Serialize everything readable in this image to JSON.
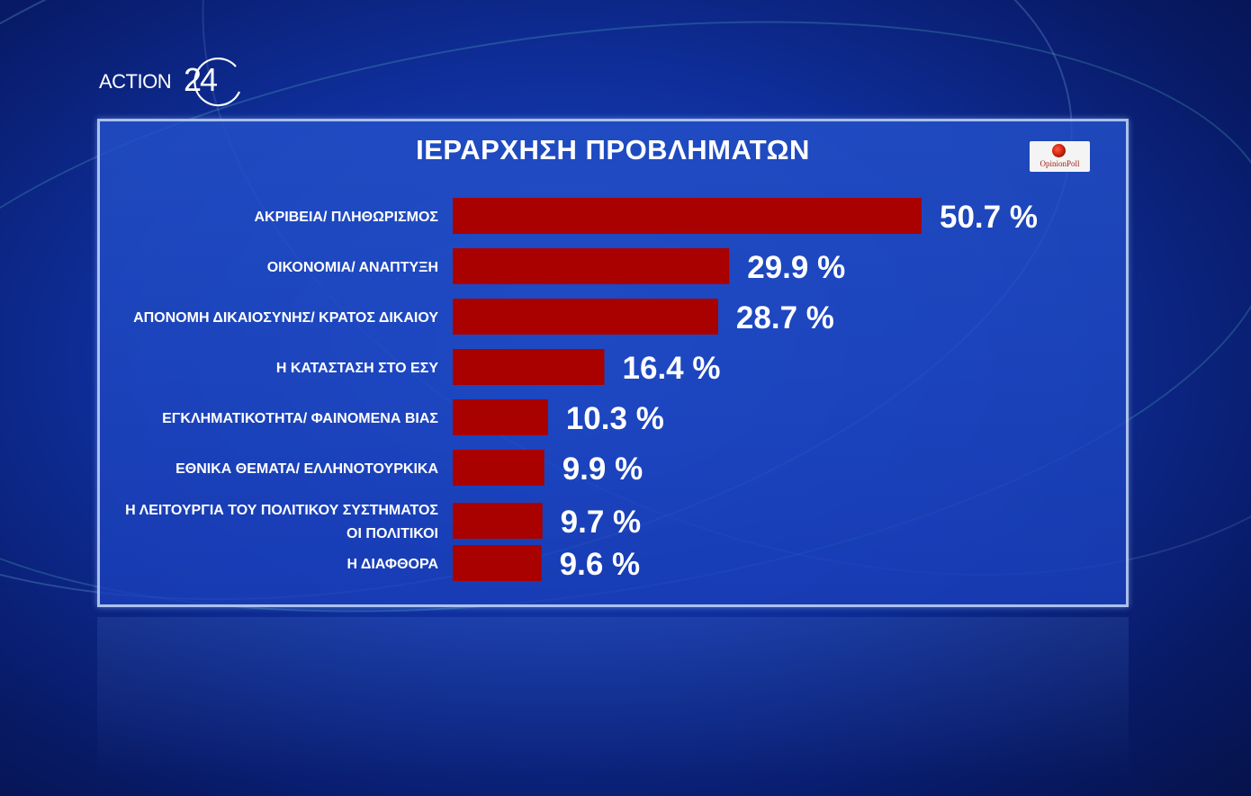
{
  "channel": {
    "logo_text": "ACTION",
    "logo_number": "24"
  },
  "poll_logo": {
    "text": "OpinionPoll"
  },
  "colors": {
    "bar": "#a90000",
    "background": "#0f2f9c",
    "text": "#ffffff"
  },
  "chart_data": {
    "type": "bar",
    "orientation": "horizontal",
    "title": "ΙΕΡΑΡΧΗΣΗ ΠΡΟΒΛΗΜΑΤΩΝ",
    "categories": [
      [
        "ΑΚΡΙΒΕΙΑ/ ΠΛΗΘΩΡΙΣΜΟΣ"
      ],
      [
        "ΟΙΚΟΝΟΜΙΑ/ ΑΝΑΠΤΥΞΗ"
      ],
      [
        "ΑΠΟΝΟΜΗ ΔΙΚΑΙΟΣΥΝΗΣ/ ΚΡΑΤΟΣ ΔΙΚΑΙΟΥ"
      ],
      [
        "Η ΚΑΤΑΣΤΑΣΗ ΣΤΟ ΕΣΥ"
      ],
      [
        "ΕΓΚΛΗΜΑΤΙΚΟΤΗΤΑ/ ΦΑΙΝΟΜΕΝΑ ΒΙΑΣ"
      ],
      [
        "ΕΘΝΙΚΑ ΘΕΜΑΤΑ/ ΕΛΛΗΝΟΤΟΥΡΚΙΚΑ"
      ],
      [
        "Η ΛΕΙΤΟΥΡΓΙΑ ΤΟΥ ΠΟΛΙΤΙΚΟΥ ΣΥΣΤΗΜΑΤΟΣ",
        "ΟΙ ΠΟΛΙΤΙΚΟΙ"
      ],
      [
        "Η ΔΙΑΦΘΟΡΑ"
      ]
    ],
    "values": [
      50.7,
      29.9,
      28.7,
      16.4,
      10.3,
      9.9,
      9.7,
      9.6
    ],
    "value_labels": [
      "50.7 %",
      "29.9 %",
      "28.7 %",
      "16.4 %",
      "10.3 %",
      "9.9 %",
      "9.7 %",
      "9.6 %"
    ],
    "unit": "%",
    "xlim": [
      0,
      50.7
    ],
    "grid": false,
    "legend": "none"
  }
}
